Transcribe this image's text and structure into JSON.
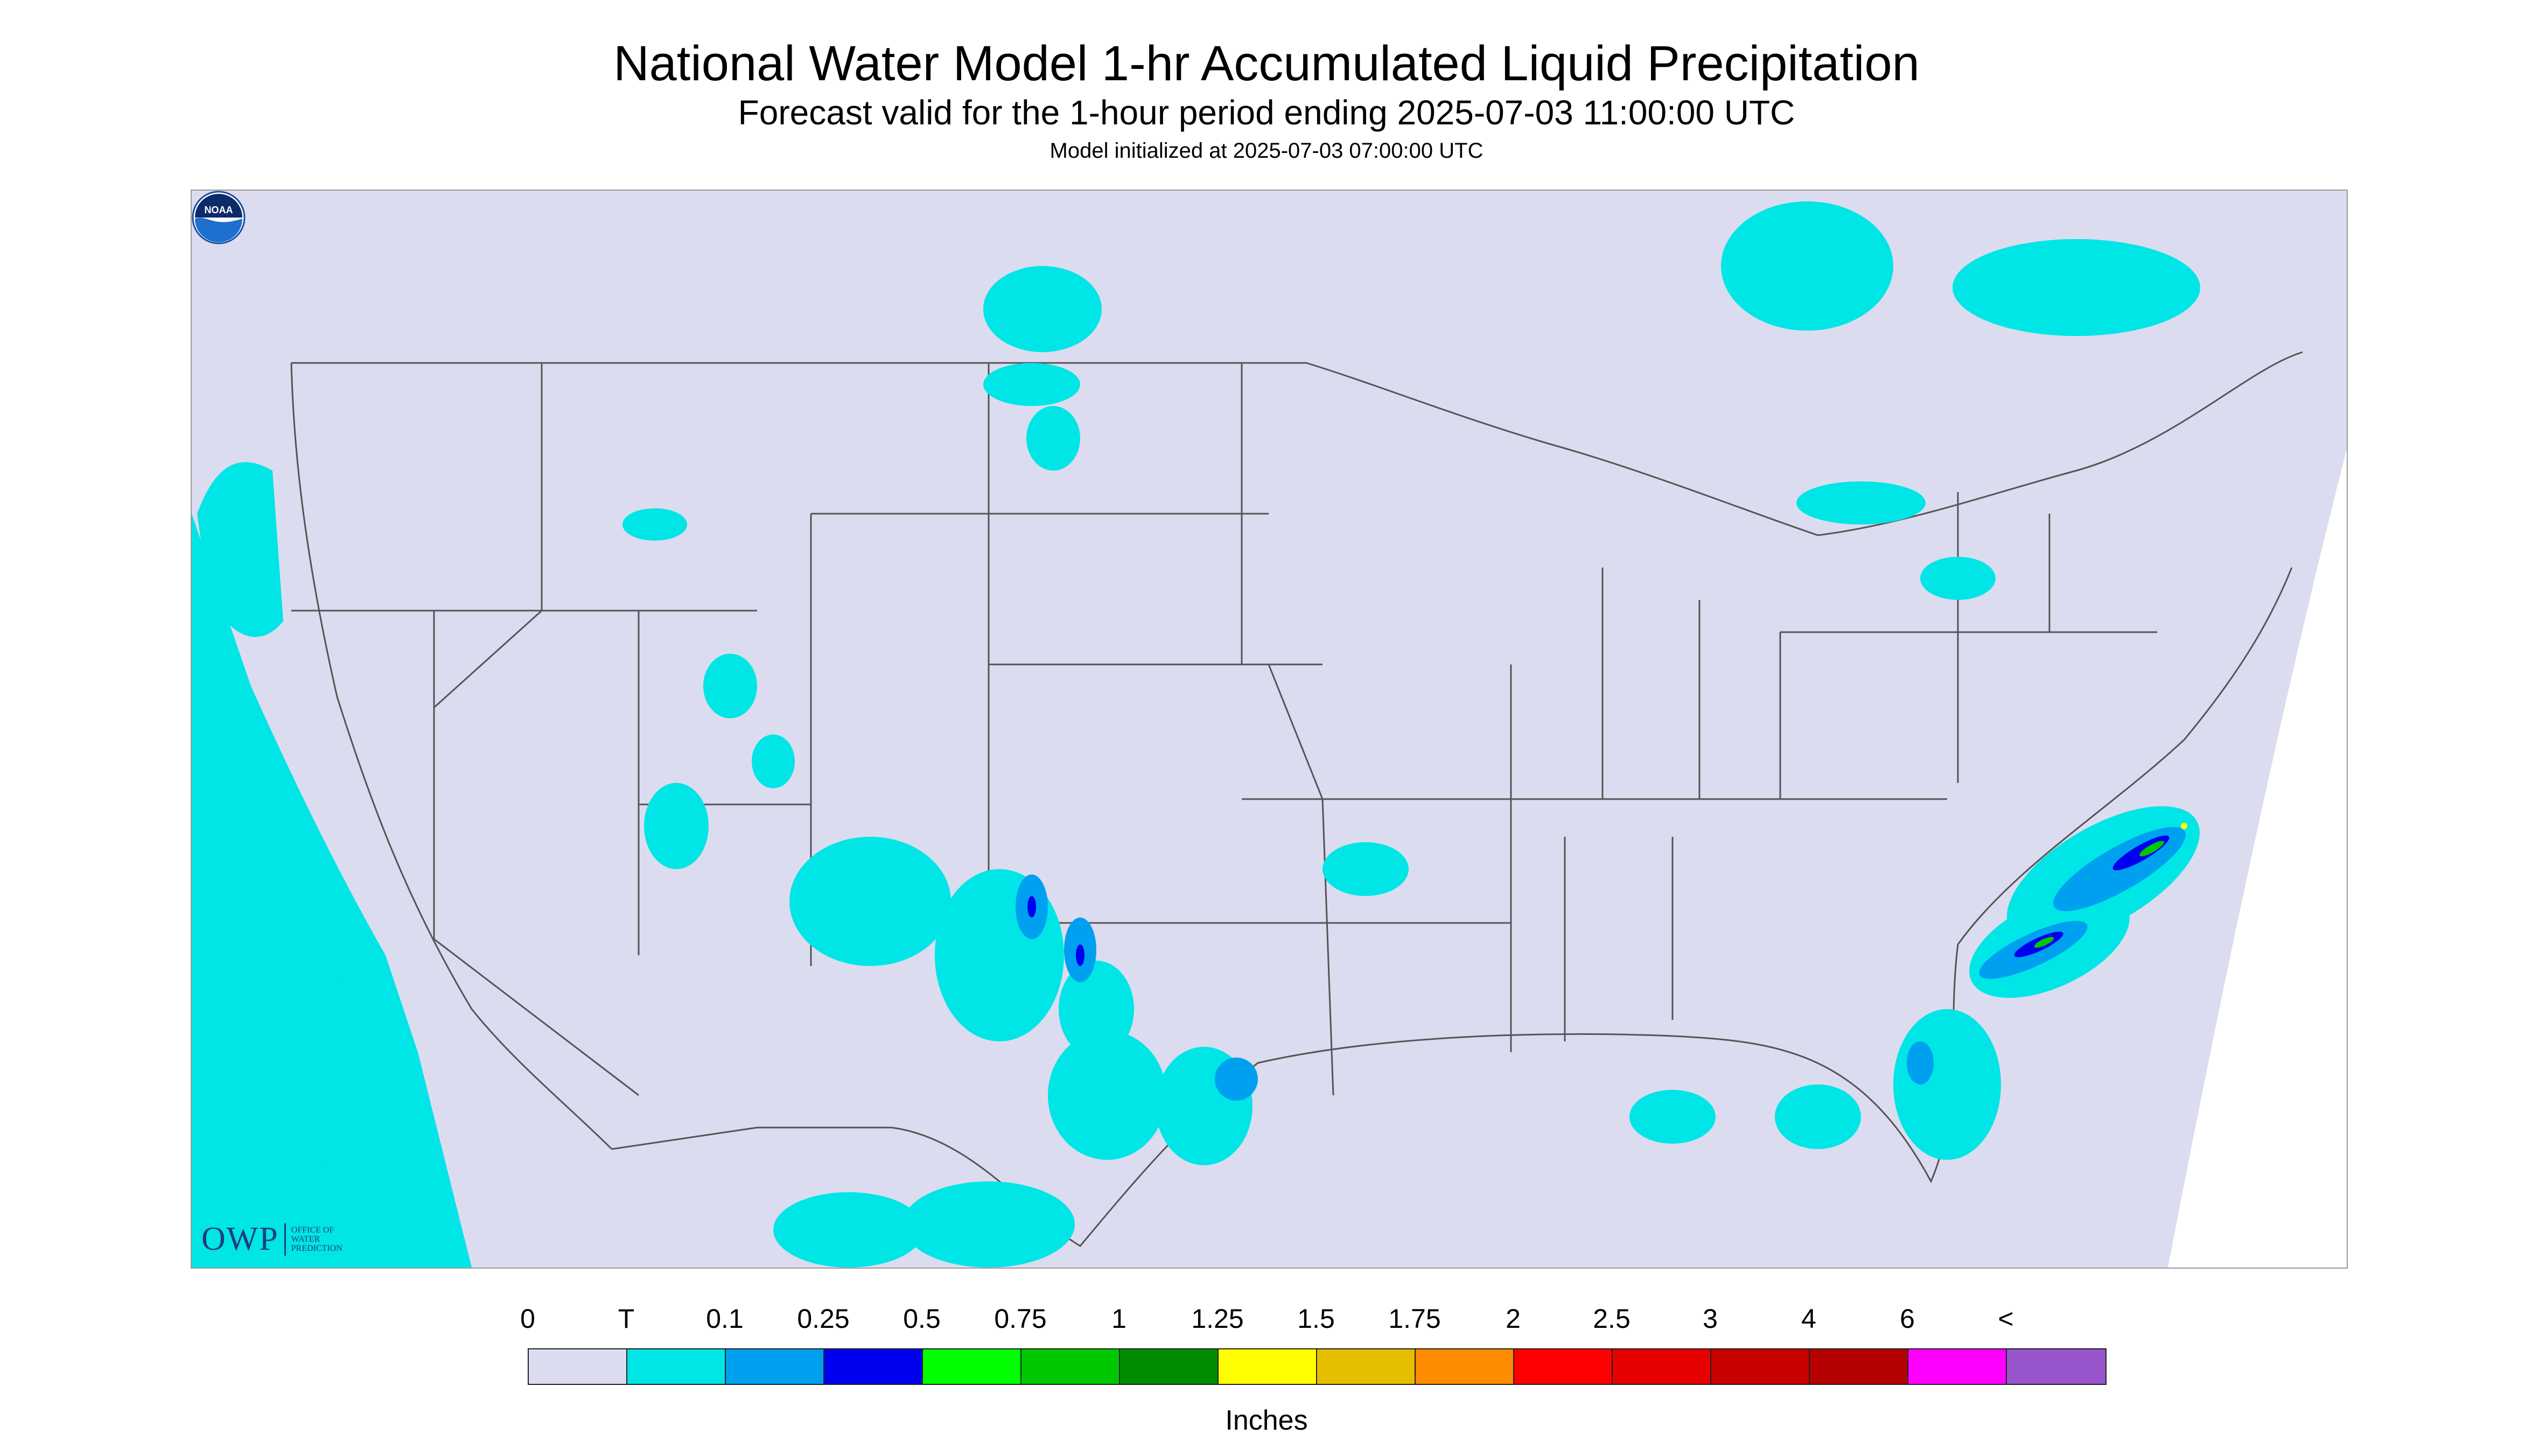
{
  "title": "National Water Model 1-hr Accumulated Liquid Precipitation",
  "subtitle": "Forecast valid for the 1-hour period ending 2025-07-03 11:00:00 UTC",
  "init_text": "Model initialized at 2025-07-03 07:00:00 UTC",
  "logo_owp": {
    "text": "OWP",
    "subtext": [
      "OFFICE OF",
      "WATER",
      "PREDICTION"
    ]
  },
  "logo_noaa": {
    "text": "NOAA"
  },
  "legend": {
    "labels": [
      "0",
      "T",
      "0.1",
      "0.25",
      "0.5",
      "0.75",
      "1",
      "1.25",
      "1.5",
      "1.75",
      "2",
      "2.5",
      "3",
      "4",
      "6",
      "<"
    ],
    "colors": [
      "#dcdcf0",
      "#00e5e5",
      "#00a0f0",
      "#0000f0",
      "#00ff00",
      "#00c800",
      "#008c00",
      "#ffff00",
      "#e6be00",
      "#ff8c00",
      "#ff0000",
      "#e60000",
      "#c80000",
      "#b40000",
      "#ff00ff",
      "#9955cc"
    ],
    "units": "Inches"
  },
  "map_colors": {
    "domain_fill": "#dcdcf0",
    "outside_fill": "#ffffff",
    "border": "#555555",
    "trace": "#00e5e5",
    "light": "#00a0f0",
    "moderate": "#0000f0",
    "heavy": "#00c800",
    "intense": "#ffff00"
  }
}
